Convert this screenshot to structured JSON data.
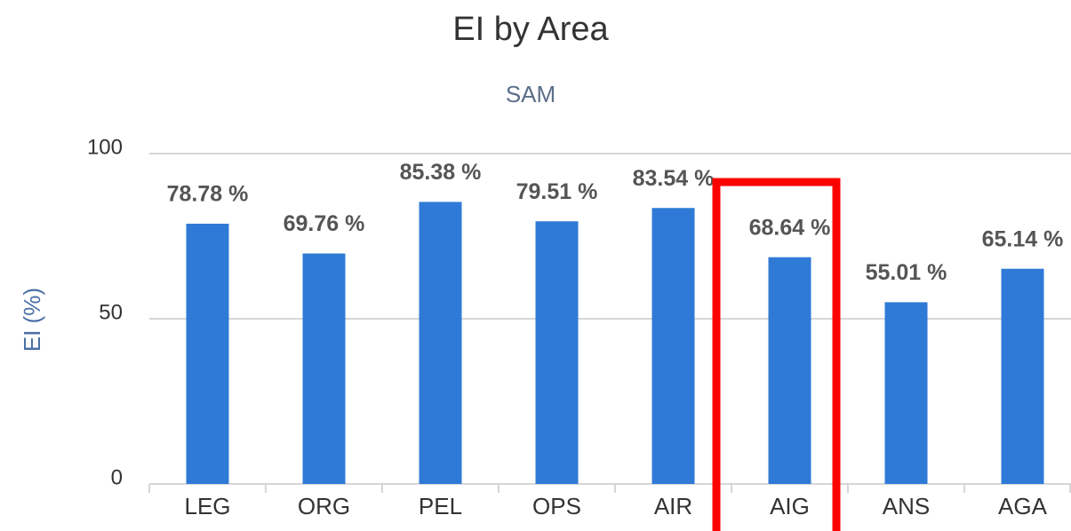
{
  "chart_data": {
    "type": "bar",
    "title": "EI by Area",
    "subtitle": "SAM",
    "y_label": "EI (%)",
    "categories": [
      "LEG",
      "ORG",
      "PEL",
      "OPS",
      "AIR",
      "AIG",
      "ANS",
      "AGA"
    ],
    "values": [
      78.78,
      69.76,
      85.38,
      79.51,
      83.54,
      68.64,
      55.01,
      65.14
    ],
    "value_labels": [
      "78.78 %",
      "69.76 %",
      "85.38 %",
      "79.51 %",
      "83.54 %",
      "68.64 %",
      "55.01 %",
      "65.14 %"
    ],
    "color": "#2f7ad6",
    "ylim": [
      0,
      100
    ],
    "yticks": [
      0,
      50,
      100
    ],
    "grid": true
  }
}
